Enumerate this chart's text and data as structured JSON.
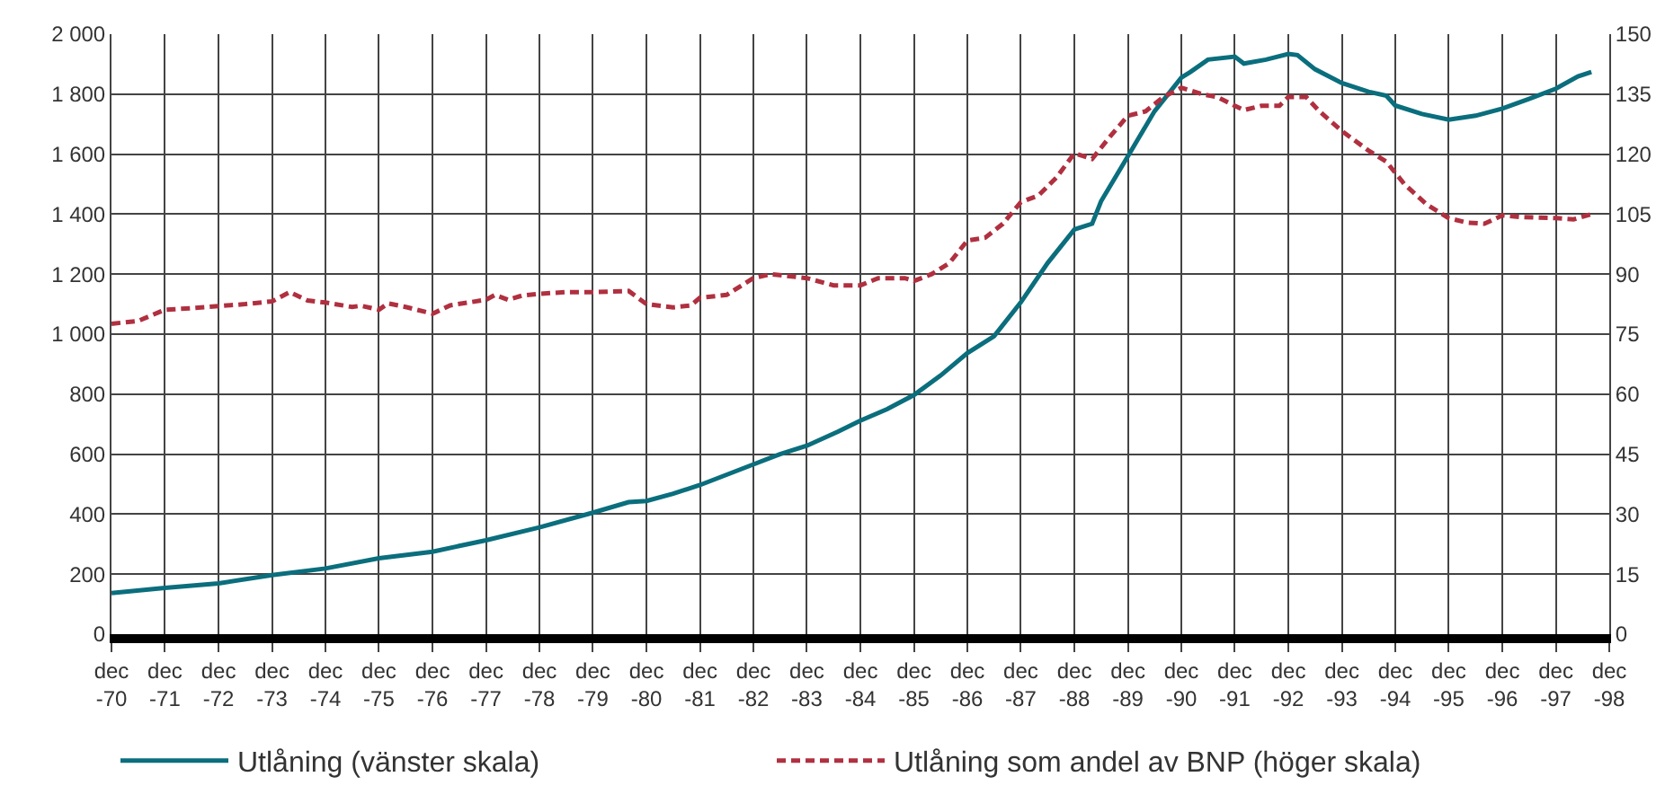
{
  "chart_data": {
    "type": "line",
    "xlim": [
      "1970-12",
      "1998-12"
    ],
    "xticks": [
      {
        "value": "1970-12",
        "label": "dec\n-70"
      },
      {
        "value": "1971-12",
        "label": "dec\n-71"
      },
      {
        "value": "1972-12",
        "label": "dec\n-72"
      },
      {
        "value": "1973-12",
        "label": "dec\n-73"
      },
      {
        "value": "1974-12",
        "label": "dec\n-74"
      },
      {
        "value": "1975-12",
        "label": "dec\n-75"
      },
      {
        "value": "1976-12",
        "label": "dec\n-76"
      },
      {
        "value": "1977-12",
        "label": "dec\n-77"
      },
      {
        "value": "1978-12",
        "label": "dec\n-78"
      },
      {
        "value": "1979-12",
        "label": "dec\n-79"
      },
      {
        "value": "1980-12",
        "label": "dec\n-80"
      },
      {
        "value": "1981-12",
        "label": "dec\n-81"
      },
      {
        "value": "1982-12",
        "label": "dec\n-82"
      },
      {
        "value": "1983-12",
        "label": "dec\n-83"
      },
      {
        "value": "1984-12",
        "label": "dec\n-84"
      },
      {
        "value": "1985-12",
        "label": "dec\n-85"
      },
      {
        "value": "1986-12",
        "label": "dec\n-86"
      },
      {
        "value": "1987-12",
        "label": "dec\n-87"
      },
      {
        "value": "1988-12",
        "label": "dec\n-88"
      },
      {
        "value": "1989-12",
        "label": "dec\n-89"
      },
      {
        "value": "1990-12",
        "label": "dec\n-90"
      },
      {
        "value": "1991-12",
        "label": "dec\n-91"
      },
      {
        "value": "1992-12",
        "label": "dec\n-92"
      },
      {
        "value": "1993-12",
        "label": "dec\n-93"
      },
      {
        "value": "1994-12",
        "label": "dec\n-94"
      },
      {
        "value": "1995-12",
        "label": "dec\n-95"
      },
      {
        "value": "1996-12",
        "label": "dec\n-96"
      },
      {
        "value": "1997-12",
        "label": "dec\n-97"
      },
      {
        "value": "1998-12",
        "label": "dec\n-98"
      }
    ],
    "ylim": [
      0,
      2000
    ],
    "yticks": [
      0,
      200,
      400,
      600,
      800,
      {
        "value": 1000,
        "label": "1 000"
      },
      {
        "value": 1200,
        "label": "1 200"
      },
      {
        "value": 1400,
        "label": "1 400"
      },
      {
        "value": 1600,
        "label": "1 600"
      },
      {
        "value": 1800,
        "label": "1 800"
      },
      {
        "value": 2000,
        "label": "2 000"
      }
    ],
    "y2lim": [
      0,
      150
    ],
    "y2ticks": [
      0,
      15,
      30,
      45,
      60,
      75,
      90,
      105,
      120,
      135,
      150
    ],
    "grid": true,
    "legend": "bottom",
    "marker": "none",
    "series": [
      {
        "name": "Utlåning (vänster skala)",
        "color": "#0a6e7d",
        "line_style": "solid",
        "x": [
          "1970-12",
          "1971-12",
          "1972-12",
          "1973-12",
          "1974-12",
          "1975-12",
          "1976-12",
          "1977-12",
          "1978-12",
          "1979-12",
          "1980-08",
          "1980-12",
          "1981-06",
          "1981-12",
          "1982-12",
          "1983-06",
          "1983-12",
          "1984-07",
          "1984-12",
          "1985-06",
          "1985-12",
          "1986-06",
          "1986-12",
          "1987-06",
          "1987-12",
          "1988-06",
          "1988-12",
          "1989-04",
          "1989-06",
          "1989-12",
          "1990-06",
          "1990-12",
          "1991-02",
          "1991-06",
          "1991-12",
          "1992-02",
          "1992-07",
          "1992-12",
          "1993-02",
          "1993-06",
          "1993-12",
          "1994-06",
          "1994-10",
          "1994-12",
          "1995-06",
          "1995-12",
          "1996-06",
          "1996-12",
          "1997-06",
          "1997-12",
          "1998-05",
          "1998-08"
        ],
        "values": [
          137,
          154,
          169,
          197,
          219,
          253,
          275,
          313,
          356,
          405,
          440,
          444,
          468,
          497,
          566,
          600,
          628,
          675,
          712,
          750,
          797,
          862,
          937,
          993,
          1106,
          1237,
          1349,
          1368,
          1443,
          1593,
          1743,
          1855,
          1874,
          1915,
          1925,
          1902,
          1915,
          1934,
          1930,
          1883,
          1837,
          1808,
          1795,
          1762,
          1734,
          1715,
          1728,
          1752,
          1784,
          1818,
          1859,
          1874
        ]
      },
      {
        "name": "Utlåning som andel av BNP (höger skala)",
        "color": "#b03040",
        "line_style": "dashed",
        "axis": "y2",
        "x": [
          "1970-12",
          "1971-06",
          "1971-12",
          "1972-06",
          "1972-12",
          "1973-06",
          "1973-12",
          "1974-04",
          "1974-08",
          "1974-12",
          "1975-06",
          "1975-08",
          "1975-12",
          "1976-02",
          "1976-06",
          "1976-12",
          "1977-04",
          "1977-12",
          "1978-02",
          "1978-05",
          "1978-08",
          "1978-12",
          "1979-06",
          "1979-12",
          "1980-08",
          "1980-12",
          "1981-06",
          "1981-10",
          "1981-12",
          "1982-06",
          "1982-12",
          "1983-04",
          "1983-12",
          "1984-06",
          "1984-12",
          "1985-04",
          "1985-10",
          "1985-12",
          "1986-04",
          "1986-08",
          "1986-12",
          "1987-04",
          "1987-08",
          "1987-12",
          "1988-04",
          "1988-08",
          "1988-12",
          "1989-04",
          "1989-08",
          "1989-12",
          "1990-04",
          "1990-08",
          "1990-12",
          "1991-05",
          "1991-08",
          "1992-02",
          "1992-06",
          "1992-10",
          "1992-12",
          "1993-04",
          "1993-07",
          "1993-12",
          "1994-06",
          "1994-10",
          "1995-02",
          "1995-07",
          "1995-12",
          "1996-04",
          "1996-08",
          "1996-12",
          "1997-04",
          "1997-12",
          "1998-04",
          "1998-08"
        ],
        "values": [
          77.6,
          78.3,
          81.1,
          81.5,
          82.0,
          82.5,
          83.2,
          85.5,
          83.4,
          82.9,
          81.8,
          82.1,
          81.1,
          82.7,
          81.8,
          80.1,
          82.2,
          83.6,
          84.8,
          83.6,
          84.6,
          85.1,
          85.5,
          85.5,
          85.8,
          82.5,
          81.7,
          82.2,
          84.1,
          84.8,
          89.0,
          90.0,
          89.0,
          87.2,
          87.2,
          89.0,
          89.0,
          88.3,
          90.0,
          92.8,
          98.4,
          99.1,
          102.6,
          108.0,
          109.7,
          114.2,
          120.2,
          118.8,
          124.4,
          129.6,
          130.7,
          134.3,
          136.6,
          134.9,
          134.3,
          131.0,
          132.1,
          132.1,
          134.3,
          134.3,
          130.7,
          125.8,
          120.9,
          118.1,
          112.5,
          107.5,
          104.0,
          102.9,
          102.6,
          104.7,
          104.3,
          104.0,
          103.7,
          105.0
        ]
      }
    ]
  }
}
